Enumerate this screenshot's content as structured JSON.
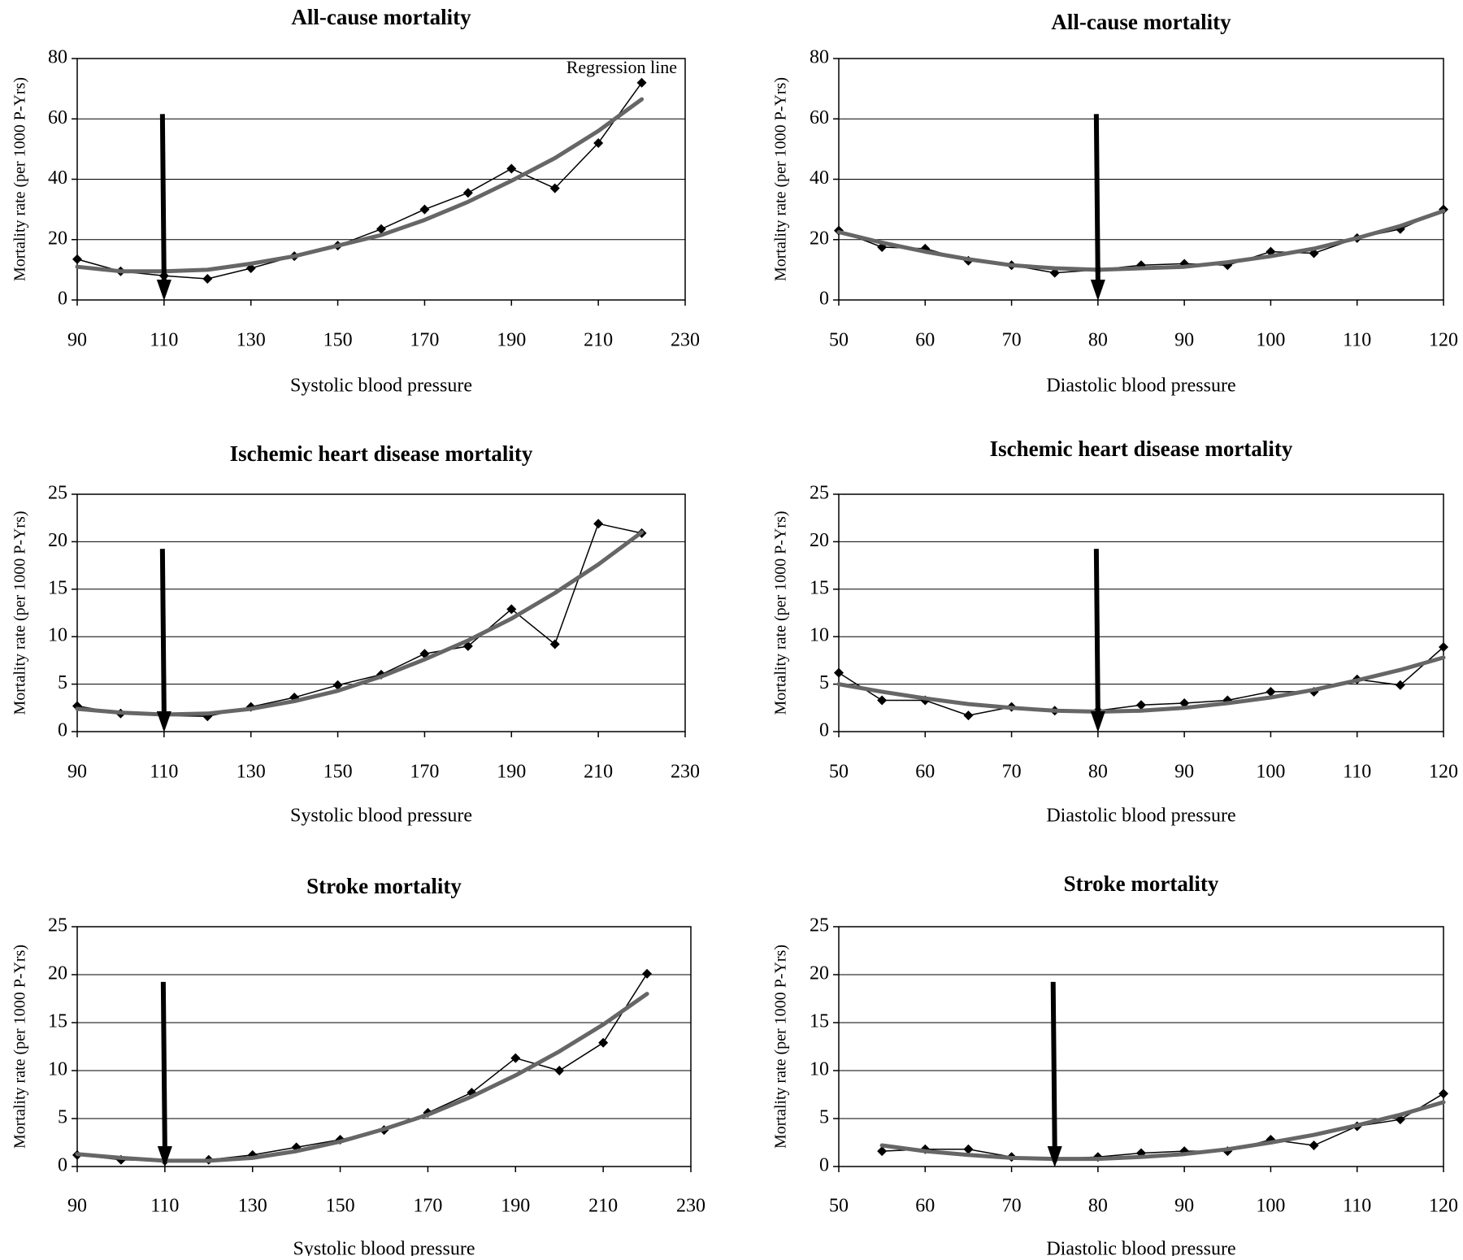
{
  "figure": {
    "ylabel_common": "Mortality rate (per 1000 P-Yrs)",
    "colors": {
      "observed": "#000000",
      "regression": "#666666",
      "grid": "#000000",
      "arrow": "#000000"
    },
    "marker": "diamond"
  },
  "chart_data": [
    {
      "type": "line",
      "title": "All-cause mortality",
      "xlabel": "Systolic blood pressure",
      "ylabel": "Mortality rate (per 1000 P-Yrs)",
      "xlim": [
        90,
        230
      ],
      "ylim": [
        0,
        80
      ],
      "xticks": [
        90,
        110,
        130,
        150,
        170,
        190,
        210,
        230
      ],
      "yticks": [
        0,
        20,
        40,
        60,
        80
      ],
      "grid": "horizontal",
      "annotation": "Regression line",
      "arrow_x": 110,
      "series": [
        {
          "role": "observed",
          "x": [
            90,
            100,
            110,
            120,
            130,
            140,
            150,
            160,
            170,
            180,
            190,
            200,
            210,
            220
          ],
          "y": [
            13.5,
            9.5,
            8,
            7,
            10.5,
            14.5,
            18,
            23.5,
            30,
            35.5,
            43.5,
            37,
            52,
            72
          ]
        },
        {
          "role": "regression",
          "x": [
            90,
            100,
            110,
            120,
            130,
            140,
            150,
            160,
            170,
            180,
            190,
            200,
            210,
            220
          ],
          "y": [
            11,
            9.5,
            9.5,
            10,
            12,
            14.5,
            18,
            21.5,
            26.5,
            32.5,
            39.5,
            47,
            56,
            66.5
          ]
        }
      ]
    },
    {
      "type": "line",
      "title": "All-cause mortality",
      "xlabel": "Diastolic blood pressure",
      "ylabel": "Mortality rate (per 1000 P-Yrs)",
      "xlim": [
        50,
        120
      ],
      "ylim": [
        0,
        80
      ],
      "xticks": [
        50,
        60,
        70,
        80,
        90,
        100,
        110,
        120
      ],
      "yticks": [
        0,
        20,
        40,
        60,
        80
      ],
      "grid": "horizontal",
      "arrow_x": 80,
      "series": [
        {
          "role": "observed",
          "x": [
            50,
            55,
            60,
            65,
            70,
            75,
            80,
            85,
            90,
            95,
            100,
            105,
            110,
            115,
            120
          ],
          "y": [
            23,
            17.5,
            17,
            13,
            11.5,
            9,
            10,
            11.5,
            12,
            11.5,
            16,
            15.5,
            20.5,
            23.5,
            30
          ]
        },
        {
          "role": "regression",
          "x": [
            50,
            55,
            60,
            65,
            70,
            75,
            80,
            85,
            90,
            95,
            100,
            105,
            110,
            115,
            120
          ],
          "y": [
            22.5,
            19,
            16,
            13.5,
            11.5,
            10.5,
            10,
            10.5,
            11,
            12.5,
            14.5,
            17,
            20.5,
            24.5,
            29.5
          ]
        }
      ]
    },
    {
      "type": "line",
      "title": "Ischemic heart disease mortality",
      "xlabel": "Systolic blood pressure",
      "ylabel": "Mortality rate (per 1000 P-Yrs)",
      "xlim": [
        90,
        230
      ],
      "ylim": [
        0,
        25
      ],
      "xticks": [
        90,
        110,
        130,
        150,
        170,
        190,
        210,
        230
      ],
      "yticks": [
        0,
        5,
        10,
        15,
        20,
        25
      ],
      "grid": "horizontal",
      "arrow_x": 110,
      "series": [
        {
          "role": "observed",
          "x": [
            90,
            100,
            110,
            120,
            130,
            140,
            150,
            160,
            170,
            180,
            190,
            200,
            210,
            220
          ],
          "y": [
            2.7,
            1.9,
            1.7,
            1.6,
            2.6,
            3.6,
            4.9,
            6,
            8.2,
            9,
            12.9,
            9.2,
            21.9,
            20.9
          ]
        },
        {
          "role": "regression",
          "x": [
            90,
            100,
            110,
            120,
            130,
            140,
            150,
            160,
            170,
            180,
            190,
            200,
            210,
            220
          ],
          "y": [
            2.4,
            2,
            1.8,
            1.9,
            2.4,
            3.2,
            4.3,
            5.8,
            7.6,
            9.6,
            11.9,
            14.6,
            17.6,
            21
          ]
        }
      ]
    },
    {
      "type": "line",
      "title": "Ischemic heart disease mortality",
      "xlabel": "Diastolic blood pressure",
      "ylabel": "Mortality rate (per 1000 P-Yrs)",
      "xlim": [
        50,
        120
      ],
      "ylim": [
        0,
        25
      ],
      "xticks": [
        50,
        60,
        70,
        80,
        90,
        100,
        110,
        120
      ],
      "yticks": [
        0,
        5,
        10,
        15,
        20,
        25
      ],
      "grid": "horizontal",
      "arrow_x": 80,
      "series": [
        {
          "role": "observed",
          "x": [
            50,
            55,
            60,
            65,
            70,
            75,
            80,
            85,
            90,
            95,
            100,
            105,
            110,
            115,
            120
          ],
          "y": [
            6.2,
            3.3,
            3.3,
            1.7,
            2.6,
            2.2,
            2.2,
            2.8,
            3,
            3.3,
            4.2,
            4.2,
            5.5,
            4.9,
            8.9
          ]
        },
        {
          "role": "regression",
          "x": [
            50,
            55,
            60,
            65,
            70,
            75,
            80,
            85,
            90,
            95,
            100,
            105,
            110,
            115,
            120
          ],
          "y": [
            5,
            4.2,
            3.5,
            2.9,
            2.5,
            2.2,
            2.1,
            2.2,
            2.5,
            3,
            3.6,
            4.4,
            5.4,
            6.5,
            7.8
          ]
        }
      ]
    },
    {
      "type": "line",
      "title": "Stroke mortality",
      "xlabel": "Systolic blood pressure",
      "ylabel": "Mortality rate (per 1000 P-Yrs)",
      "xlim": [
        90,
        230
      ],
      "ylim": [
        0,
        25
      ],
      "xticks": [
        90,
        110,
        130,
        150,
        170,
        190,
        210,
        230
      ],
      "yticks": [
        0,
        5,
        10,
        15,
        20,
        25
      ],
      "grid": "horizontal",
      "arrow_x": 110,
      "series": [
        {
          "role": "observed",
          "x": [
            90,
            100,
            110,
            120,
            130,
            140,
            150,
            160,
            170,
            180,
            190,
            200,
            210,
            220
          ],
          "y": [
            1.2,
            0.7,
            0.6,
            0.7,
            1.2,
            2,
            2.8,
            3.8,
            5.6,
            7.7,
            11.3,
            10,
            12.9,
            20.1
          ]
        },
        {
          "role": "regression",
          "x": [
            90,
            100,
            110,
            120,
            130,
            140,
            150,
            160,
            170,
            180,
            190,
            200,
            210,
            220
          ],
          "y": [
            1.3,
            0.9,
            0.6,
            0.6,
            0.9,
            1.6,
            2.6,
            3.9,
            5.4,
            7.3,
            9.5,
            12,
            14.8,
            18
          ]
        }
      ]
    },
    {
      "type": "line",
      "title": "Stroke mortality",
      "xlabel": "Diastolic blood pressure",
      "ylabel": "Mortality rate (per 1000 P-Yrs)",
      "xlim": [
        50,
        120
      ],
      "ylim": [
        0,
        25
      ],
      "xticks": [
        50,
        60,
        70,
        80,
        90,
        100,
        110,
        120
      ],
      "yticks": [
        0,
        5,
        10,
        15,
        20,
        25
      ],
      "grid": "horizontal",
      "arrow_x": 75,
      "series": [
        {
          "role": "observed",
          "x": [
            55,
            60,
            65,
            70,
            75,
            80,
            85,
            90,
            95,
            100,
            105,
            110,
            115,
            120
          ],
          "y": [
            1.6,
            1.8,
            1.8,
            1,
            0.8,
            1,
            1.4,
            1.6,
            1.6,
            2.8,
            2.2,
            4.2,
            4.9,
            7.6
          ]
        },
        {
          "role": "regression",
          "x": [
            55,
            60,
            65,
            70,
            75,
            80,
            85,
            90,
            95,
            100,
            105,
            110,
            115,
            120
          ],
          "y": [
            2.2,
            1.6,
            1.2,
            0.9,
            0.8,
            0.8,
            1,
            1.3,
            1.8,
            2.5,
            3.3,
            4.3,
            5.4,
            6.7
          ]
        }
      ]
    }
  ]
}
